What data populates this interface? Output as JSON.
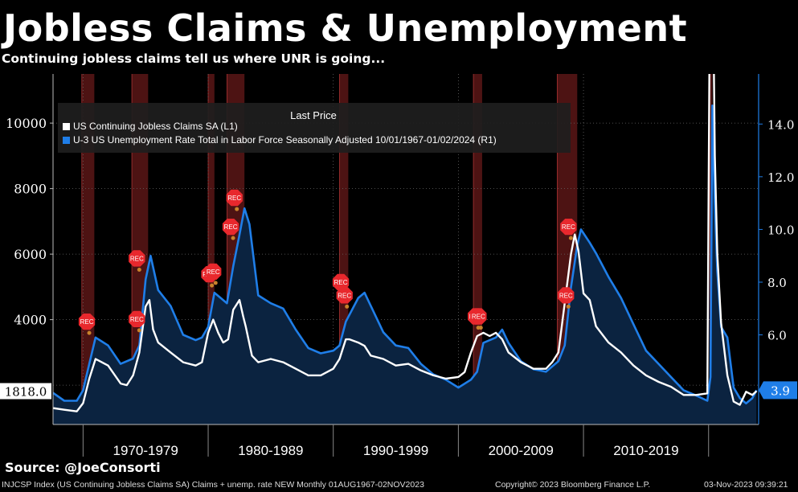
{
  "header": {
    "title": "Jobless Claims & Unemployment",
    "subtitle": "Continuing jobless claims tell us where UNR is going..."
  },
  "footer": {
    "source": "Source: @JoeConsorti",
    "index_info": "INJCSP Index (US Continuing Jobless Claims SA) Claims + unemp. rate NEW  Monthly 01AUG1967-02NOV2023",
    "copyright": "Copyright© 2023 Bloomberg Finance L.P.",
    "timestamp": "03-Nov-2023 09:39:21"
  },
  "colors": {
    "background": "#000000",
    "claims_line": "#ffffff",
    "unemployment_line": "#1f7ee8",
    "area_fill": "#0b2340",
    "recession_band": "#5a1616",
    "rec_marker": "#e8282d"
  },
  "chart_data": {
    "type": "line",
    "legend": {
      "title": "Last Price",
      "placement": "top-left",
      "entries": [
        {
          "label": "US Continuing Jobless Claims SA  (L1)",
          "color": "#ffffff"
        },
        {
          "label": "U-3 US Unemployment Rate Total in Labor Force Seasonally Adjusted 10/01/1967-01/02/2024   (R1)",
          "color": "#1f7ee8"
        }
      ]
    },
    "x_range": [
      1967.6,
      2024.0
    ],
    "x_tick_labels": [
      "1970-1979",
      "1980-1989",
      "1990-1999",
      "2000-2009",
      "2010-2019"
    ],
    "left_axis": {
      "unit": "thousands",
      "ticks": [
        4000,
        6000,
        8000,
        10000
      ],
      "range": [
        800,
        11500
      ],
      "last_value_label": "1818.0"
    },
    "right_axis": {
      "unit": "percent",
      "ticks": [
        "6.0",
        "8.0",
        "10.0",
        "12.0",
        "14.0"
      ],
      "range": [
        2.6,
        15.9
      ],
      "last_value_label": "3.9"
    },
    "recession_periods": [
      [
        1969.9,
        1970.9
      ],
      [
        1973.9,
        1975.2
      ],
      [
        1980.0,
        1980.5
      ],
      [
        1981.5,
        1982.9
      ],
      [
        1990.5,
        1991.2
      ],
      [
        2001.2,
        2001.9
      ],
      [
        2007.9,
        2009.5
      ],
      [
        2020.1,
        2020.3
      ]
    ],
    "rec_label": "REC",
    "rec_markers": [
      [
        1970.3,
        6.5
      ],
      [
        1974.3,
        8.9
      ],
      [
        1974.3,
        6.6
      ],
      [
        1980.1,
        8.3
      ],
      [
        1980.4,
        8.4
      ],
      [
        1981.8,
        10.1
      ],
      [
        1982.1,
        11.2
      ],
      [
        1990.6,
        8.0
      ],
      [
        1990.9,
        7.5
      ],
      [
        2001.4,
        6.7
      ],
      [
        2001.6,
        6.7
      ],
      [
        2008.8,
        10.1
      ],
      [
        2008.6,
        7.5
      ]
    ],
    "series": [
      {
        "name": "US Continuing Jobless Claims SA",
        "axis": "left",
        "x": [
          1967.6,
          1968.5,
          1969.5,
          1970.0,
          1970.5,
          1971.0,
          1972.0,
          1973.0,
          1973.5,
          1974.0,
          1974.5,
          1975.0,
          1975.3,
          1975.6,
          1976.0,
          1977.0,
          1978.0,
          1979.0,
          1979.5,
          1980.0,
          1980.4,
          1980.8,
          1981.2,
          1981.6,
          1982.0,
          1982.5,
          1982.8,
          1983.0,
          1983.5,
          1984.0,
          1985.0,
          1986.0,
          1987.0,
          1988.0,
          1989.0,
          1990.0,
          1990.5,
          1991.0,
          1991.3,
          1992.0,
          1992.5,
          1993.0,
          1994.0,
          1995.0,
          1996.0,
          1997.0,
          1998.0,
          1999.0,
          2000.0,
          2000.5,
          2001.0,
          2001.5,
          2002.0,
          2002.5,
          2003.0,
          2003.5,
          2004.0,
          2005.0,
          2006.0,
          2007.0,
          2007.5,
          2008.0,
          2008.5,
          2009.0,
          2009.3,
          2009.6,
          2010.0,
          2010.5,
          2011.0,
          2012.0,
          2013.0,
          2014.0,
          2015.0,
          2016.0,
          2017.0,
          2018.0,
          2019.0,
          2019.9,
          2020.15,
          2020.3,
          2020.5,
          2020.7,
          2021.0,
          2021.5,
          2022.0,
          2022.5,
          2023.0,
          2023.5,
          2023.83
        ],
        "values": [
          1300,
          1250,
          1200,
          1450,
          2200,
          2800,
          2600,
          2050,
          2000,
          2300,
          3000,
          4400,
          4600,
          3700,
          3300,
          3000,
          2700,
          2600,
          2700,
          3600,
          4000,
          3600,
          3300,
          3400,
          4300,
          4600,
          4100,
          3800,
          2900,
          2700,
          2800,
          2700,
          2500,
          2300,
          2300,
          2500,
          2800,
          3400,
          3400,
          3300,
          3200,
          2900,
          2800,
          2600,
          2650,
          2450,
          2300,
          2200,
          2250,
          2400,
          3000,
          3500,
          3600,
          3500,
          3600,
          3400,
          3000,
          2700,
          2500,
          2500,
          2700,
          3000,
          4500,
          6000,
          6600,
          6100,
          4800,
          4600,
          3800,
          3300,
          3000,
          2600,
          2300,
          2100,
          1950,
          1700,
          1700,
          1750,
          17000,
          16000,
          9000,
          6000,
          3900,
          2300,
          1500,
          1400,
          1800,
          1700,
          1818
        ]
      },
      {
        "name": "U-3 US Unemployment Rate",
        "axis": "right",
        "x": [
          1967.6,
          1968.5,
          1969.5,
          1970.0,
          1970.5,
          1971.0,
          1972.0,
          1973.0,
          1974.0,
          1974.5,
          1975.0,
          1975.4,
          1976.0,
          1977.0,
          1978.0,
          1979.0,
          1979.5,
          1980.0,
          1980.5,
          1981.0,
          1981.5,
          1982.0,
          1982.5,
          1982.9,
          1983.3,
          1984.0,
          1985.0,
          1986.0,
          1987.0,
          1988.0,
          1989.0,
          1990.0,
          1990.5,
          1991.0,
          1992.0,
          1992.5,
          1993.0,
          1994.0,
          1995.0,
          1996.0,
          1997.0,
          1998.0,
          1999.0,
          2000.0,
          2001.0,
          2001.5,
          2002.0,
          2003.0,
          2003.5,
          2004.0,
          2005.0,
          2006.0,
          2007.0,
          2008.0,
          2008.5,
          2009.0,
          2009.5,
          2009.8,
          2010.5,
          2011.0,
          2012.0,
          2013.0,
          2014.0,
          2015.0,
          2016.0,
          2017.0,
          2018.0,
          2019.0,
          2019.9,
          2020.15,
          2020.3,
          2020.5,
          2020.7,
          2021.0,
          2021.5,
          2022.0,
          2022.5,
          2023.0,
          2023.5,
          2023.83
        ],
        "values": [
          3.8,
          3.5,
          3.5,
          3.9,
          4.9,
          5.9,
          5.6,
          4.9,
          5.1,
          5.6,
          8.1,
          9.0,
          7.7,
          7.1,
          6.0,
          5.8,
          5.9,
          6.3,
          7.6,
          7.4,
          7.2,
          8.6,
          9.8,
          10.8,
          10.2,
          7.5,
          7.2,
          7.0,
          6.2,
          5.5,
          5.3,
          5.4,
          5.6,
          6.5,
          7.4,
          7.6,
          7.1,
          6.1,
          5.6,
          5.5,
          4.9,
          4.5,
          4.3,
          4.0,
          4.3,
          4.6,
          5.7,
          5.9,
          6.2,
          5.7,
          5.0,
          4.7,
          4.6,
          5.0,
          5.6,
          7.8,
          9.4,
          10.0,
          9.5,
          9.1,
          8.2,
          7.4,
          6.4,
          5.4,
          4.9,
          4.4,
          3.9,
          3.7,
          3.5,
          4.4,
          14.7,
          11.0,
          8.4,
          6.3,
          5.9,
          4.0,
          3.6,
          3.4,
          3.6,
          3.9
        ]
      }
    ]
  }
}
